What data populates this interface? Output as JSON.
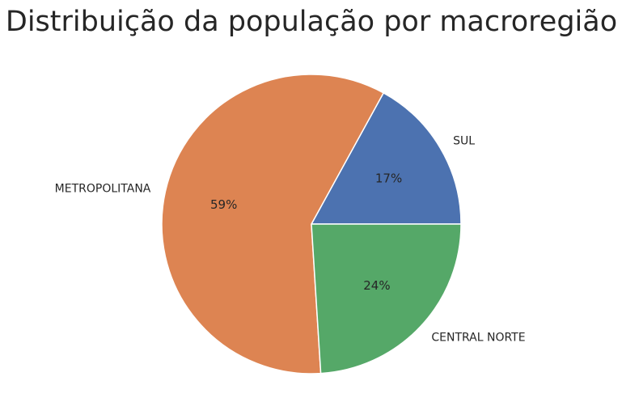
{
  "chart_data": {
    "type": "pie",
    "title": "Distribuição da população por macroregião",
    "slices": [
      {
        "label": "SUL",
        "value": 17,
        "pct_label": "17%",
        "color": "#4c72b0"
      },
      {
        "label": "METROPOLITANA",
        "value": 59,
        "pct_label": "59%",
        "color": "#dd8452"
      },
      {
        "label": "CENTRAL NORTE",
        "value": 24,
        "pct_label": "24%",
        "color": "#55a868"
      }
    ],
    "start_angle": "0 deg (3 o'clock), counter-clockwise"
  }
}
